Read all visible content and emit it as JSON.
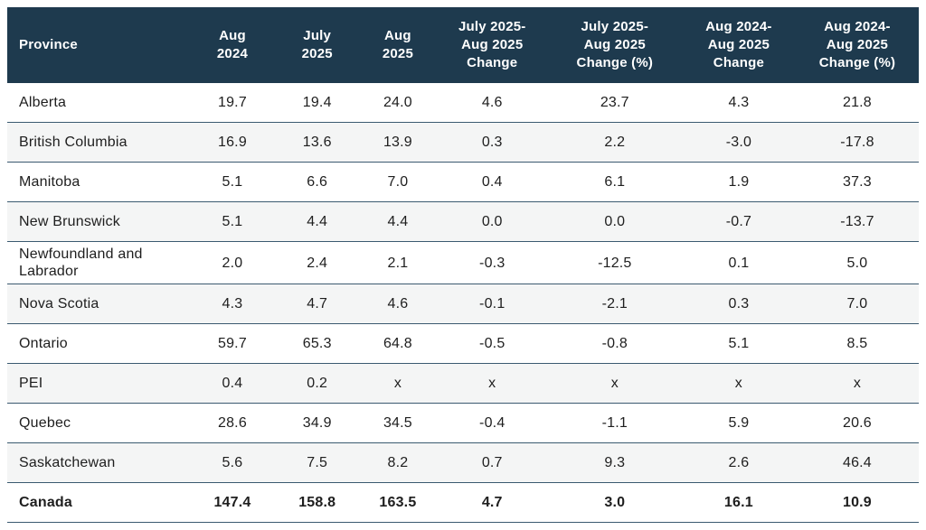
{
  "chart_data": {
    "type": "table",
    "title": "",
    "columns": [
      "Province",
      "Aug 2024",
      "July 2025",
      "Aug 2025",
      "July 2025-Aug 2025 Change",
      "July 2025-Aug 2025 Change (%)",
      "Aug 2024-Aug 2025 Change",
      "Aug 2024-Aug 2025 Change (%)"
    ],
    "rows": [
      {
        "province": "Alberta",
        "values": [
          "19.7",
          "19.4",
          "24.0",
          "4.6",
          "23.7",
          "4.3",
          "21.8"
        ],
        "is_total": false
      },
      {
        "province": "British Columbia",
        "values": [
          "16.9",
          "13.6",
          "13.9",
          "0.3",
          "2.2",
          "-3.0",
          "-17.8"
        ],
        "is_total": false
      },
      {
        "province": "Manitoba",
        "values": [
          "5.1",
          "6.6",
          "7.0",
          "0.4",
          "6.1",
          "1.9",
          "37.3"
        ],
        "is_total": false
      },
      {
        "province": "New Brunswick",
        "values": [
          "5.1",
          "4.4",
          "4.4",
          "0.0",
          "0.0",
          "-0.7",
          "-13.7"
        ],
        "is_total": false
      },
      {
        "province": "Newfoundland and Labrador",
        "values": [
          "2.0",
          "2.4",
          "2.1",
          "-0.3",
          "-12.5",
          "0.1",
          "5.0"
        ],
        "is_total": false
      },
      {
        "province": "Nova Scotia",
        "values": [
          "4.3",
          "4.7",
          "4.6",
          "-0.1",
          "-2.1",
          "0.3",
          "7.0"
        ],
        "is_total": false
      },
      {
        "province": "Ontario",
        "values": [
          "59.7",
          "65.3",
          "64.8",
          "-0.5",
          "-0.8",
          "5.1",
          "8.5"
        ],
        "is_total": false
      },
      {
        "province": "PEI",
        "values": [
          "0.4",
          "0.2",
          "x",
          "x",
          "x",
          "x",
          "x"
        ],
        "is_total": false
      },
      {
        "province": "Quebec",
        "values": [
          "28.6",
          "34.9",
          "34.5",
          "-0.4",
          "-1.1",
          "5.9",
          "20.6"
        ],
        "is_total": false
      },
      {
        "province": "Saskatchewan",
        "values": [
          "5.6",
          "7.5",
          "8.2",
          "0.7",
          "9.3",
          "2.6",
          "46.4"
        ],
        "is_total": false
      },
      {
        "province": "Canada",
        "values": [
          "147.4",
          "158.8",
          "163.5",
          "4.7",
          "3.0",
          "16.1",
          "10.9"
        ],
        "is_total": true
      }
    ]
  },
  "colors": {
    "header_bg": "#1e3a4e",
    "header_text": "#ffffff",
    "divider": "#3b5a70",
    "alt_row_bg": "#f4f5f5",
    "body_text": "#1e1e1e"
  }
}
